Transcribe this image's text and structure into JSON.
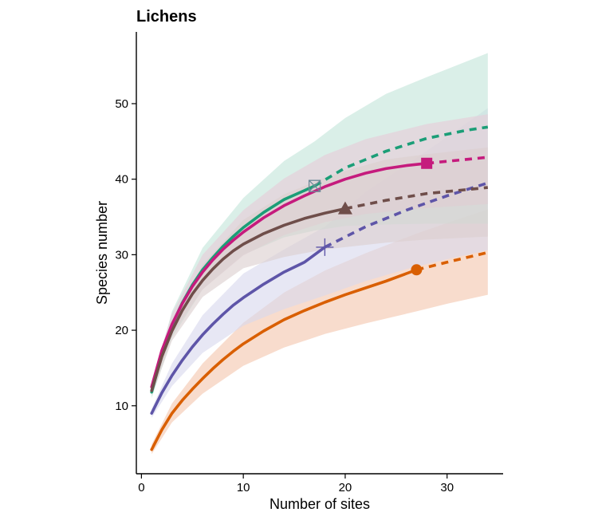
{
  "chart_data": {
    "type": "line",
    "title": "Lichens",
    "xlabel": "Number of sites",
    "ylabel": "Species number",
    "xlim": [
      -0.5,
      35.5
    ],
    "ylim": [
      1,
      59.5
    ],
    "xticks": [
      0,
      10,
      20,
      30
    ],
    "yticks": [
      10,
      20,
      30,
      40,
      50
    ],
    "grid": false,
    "legend": "none",
    "series": [
      {
        "color": "#D95F02",
        "fill": "#F4C6AE",
        "marker": "circle",
        "observed": [
          [
            1,
            4.2
          ],
          [
            2,
            6.8
          ],
          [
            3,
            9.0
          ],
          [
            4,
            10.7
          ],
          [
            5,
            12.2
          ],
          [
            6,
            13.6
          ],
          [
            7,
            14.9
          ],
          [
            8,
            16.1
          ],
          [
            9,
            17.2
          ],
          [
            10,
            18.2
          ],
          [
            12,
            19.9
          ],
          [
            14,
            21.4
          ],
          [
            16,
            22.6
          ],
          [
            18,
            23.7
          ],
          [
            20,
            24.7
          ],
          [
            22,
            25.6
          ],
          [
            24,
            26.5
          ],
          [
            27,
            28.0
          ]
        ],
        "extrapolated": [
          [
            27,
            28.0
          ],
          [
            30,
            29.0
          ],
          [
            34,
            30.3
          ]
        ],
        "lower": [
          [
            1,
            3.6
          ],
          [
            3,
            7.8
          ],
          [
            6,
            11.6
          ],
          [
            10,
            15.3
          ],
          [
            14,
            17.7
          ],
          [
            18,
            19.5
          ],
          [
            22,
            20.9
          ],
          [
            27,
            22.5
          ],
          [
            30,
            23.5
          ],
          [
            34,
            24.7
          ]
        ],
        "upper": [
          [
            1,
            4.9
          ],
          [
            3,
            10.3
          ],
          [
            6,
            15.6
          ],
          [
            10,
            21.0
          ],
          [
            14,
            25.0
          ],
          [
            18,
            27.9
          ],
          [
            22,
            30.2
          ],
          [
            27,
            32.8
          ],
          [
            30,
            34.2
          ],
          [
            34,
            36.0
          ]
        ]
      },
      {
        "color": "#5E55A8",
        "fill": "#D9D8EE",
        "marker": "plus",
        "observed": [
          [
            1,
            9.0
          ],
          [
            2,
            11.7
          ],
          [
            3,
            14.0
          ],
          [
            4,
            16.0
          ],
          [
            5,
            17.8
          ],
          [
            6,
            19.4
          ],
          [
            7,
            20.8
          ],
          [
            8,
            22.1
          ],
          [
            9,
            23.3
          ],
          [
            10,
            24.3
          ],
          [
            12,
            26.1
          ],
          [
            14,
            27.7
          ],
          [
            16,
            29.0
          ],
          [
            18,
            31.0
          ]
        ],
        "extrapolated": [
          [
            18,
            31.0
          ],
          [
            22,
            33.7
          ],
          [
            26,
            35.9
          ],
          [
            30,
            37.8
          ],
          [
            34,
            39.5
          ]
        ],
        "lower": [
          [
            1,
            8.4
          ],
          [
            3,
            12.6
          ],
          [
            6,
            17.0
          ],
          [
            10,
            20.6
          ],
          [
            14,
            22.8
          ],
          [
            18,
            24.6
          ],
          [
            22,
            26.5
          ],
          [
            26,
            28.1
          ],
          [
            30,
            29.4
          ],
          [
            34,
            30.6
          ]
        ],
        "upper": [
          [
            1,
            9.6
          ],
          [
            3,
            15.6
          ],
          [
            6,
            22.0
          ],
          [
            10,
            27.5
          ],
          [
            14,
            30.7
          ],
          [
            18,
            33.7
          ],
          [
            22,
            38.3
          ],
          [
            26,
            41.9
          ],
          [
            30,
            45.6
          ],
          [
            34,
            49.4
          ]
        ]
      },
      {
        "color": "#1B9E77",
        "fill": "#C3E5DA",
        "marker": "square-cross",
        "observed": [
          [
            1,
            11.8
          ],
          [
            2,
            16.8
          ],
          [
            3,
            20.7
          ],
          [
            4,
            23.6
          ],
          [
            5,
            26.0
          ],
          [
            6,
            28.0
          ],
          [
            7,
            29.6
          ],
          [
            8,
            31.1
          ],
          [
            9,
            32.4
          ],
          [
            10,
            33.6
          ],
          [
            12,
            35.6
          ],
          [
            14,
            37.3
          ],
          [
            17,
            39.1
          ]
        ],
        "extrapolated": [
          [
            17,
            39.1
          ],
          [
            20,
            41.5
          ],
          [
            24,
            43.7
          ],
          [
            28,
            45.4
          ],
          [
            32,
            46.5
          ],
          [
            34,
            46.9
          ]
        ],
        "lower": [
          [
            1,
            11.0
          ],
          [
            3,
            19.0
          ],
          [
            6,
            25.4
          ],
          [
            10,
            30.0
          ],
          [
            14,
            32.3
          ],
          [
            17,
            33.2
          ],
          [
            20,
            33.8
          ],
          [
            24,
            34.0
          ],
          [
            28,
            34.1
          ],
          [
            34,
            34.1
          ]
        ],
        "upper": [
          [
            1,
            12.7
          ],
          [
            3,
            22.5
          ],
          [
            6,
            30.9
          ],
          [
            10,
            37.5
          ],
          [
            14,
            42.4
          ],
          [
            17,
            45.0
          ],
          [
            20,
            48.1
          ],
          [
            24,
            51.3
          ],
          [
            28,
            53.5
          ],
          [
            34,
            56.7
          ]
        ]
      },
      {
        "color": "#C51B7D",
        "fill": "#E6CCD9",
        "marker": "square",
        "observed": [
          [
            1,
            12.5
          ],
          [
            2,
            17.3
          ],
          [
            3,
            20.8
          ],
          [
            4,
            23.5
          ],
          [
            5,
            25.8
          ],
          [
            6,
            27.7
          ],
          [
            7,
            29.3
          ],
          [
            8,
            30.7
          ],
          [
            9,
            31.9
          ],
          [
            10,
            33.0
          ],
          [
            12,
            34.9
          ],
          [
            14,
            36.5
          ],
          [
            16,
            37.8
          ],
          [
            18,
            39.0
          ],
          [
            20,
            40.0
          ],
          [
            22,
            40.8
          ],
          [
            24,
            41.4
          ],
          [
            26,
            41.8
          ],
          [
            28,
            42.1
          ]
        ],
        "extrapolated": [
          [
            28,
            42.1
          ],
          [
            31,
            42.5
          ],
          [
            34,
            42.9
          ]
        ],
        "lower": [
          [
            1,
            11.7
          ],
          [
            3,
            19.5
          ],
          [
            6,
            25.4
          ],
          [
            10,
            29.9
          ],
          [
            14,
            32.6
          ],
          [
            18,
            34.3
          ],
          [
            22,
            35.4
          ],
          [
            28,
            36.2
          ],
          [
            34,
            36.7
          ]
        ],
        "upper": [
          [
            1,
            13.3
          ],
          [
            3,
            22.2
          ],
          [
            6,
            30.0
          ],
          [
            10,
            35.9
          ],
          [
            14,
            40.1
          ],
          [
            18,
            43.2
          ],
          [
            22,
            45.3
          ],
          [
            28,
            47.3
          ],
          [
            34,
            48.6
          ]
        ]
      },
      {
        "color": "#6F4E4A",
        "fill": "#DCCFCF",
        "marker": "triangle",
        "observed": [
          [
            1,
            12.0
          ],
          [
            2,
            16.5
          ],
          [
            3,
            19.9
          ],
          [
            4,
            22.6
          ],
          [
            5,
            24.8
          ],
          [
            6,
            26.6
          ],
          [
            7,
            28.1
          ],
          [
            8,
            29.4
          ],
          [
            9,
            30.5
          ],
          [
            10,
            31.4
          ],
          [
            12,
            32.8
          ],
          [
            14,
            33.9
          ],
          [
            16,
            34.8
          ],
          [
            18,
            35.5
          ],
          [
            20,
            36.1
          ]
        ],
        "extrapolated": [
          [
            20,
            36.1
          ],
          [
            24,
            37.2
          ],
          [
            28,
            38.1
          ],
          [
            34,
            38.9
          ]
        ],
        "lower": [
          [
            1,
            11.3
          ],
          [
            3,
            18.6
          ],
          [
            6,
            24.4
          ],
          [
            10,
            28.2
          ],
          [
            14,
            29.7
          ],
          [
            18,
            30.7
          ],
          [
            20,
            31.0
          ],
          [
            24,
            31.6
          ],
          [
            28,
            32.0
          ],
          [
            34,
            32.4
          ]
        ],
        "upper": [
          [
            1,
            12.7
          ],
          [
            3,
            21.2
          ],
          [
            6,
            28.7
          ],
          [
            10,
            34.6
          ],
          [
            14,
            38.0
          ],
          [
            18,
            40.2
          ],
          [
            20,
            41.1
          ],
          [
            24,
            42.6
          ],
          [
            28,
            43.3
          ],
          [
            34,
            44.2
          ]
        ]
      }
    ]
  }
}
